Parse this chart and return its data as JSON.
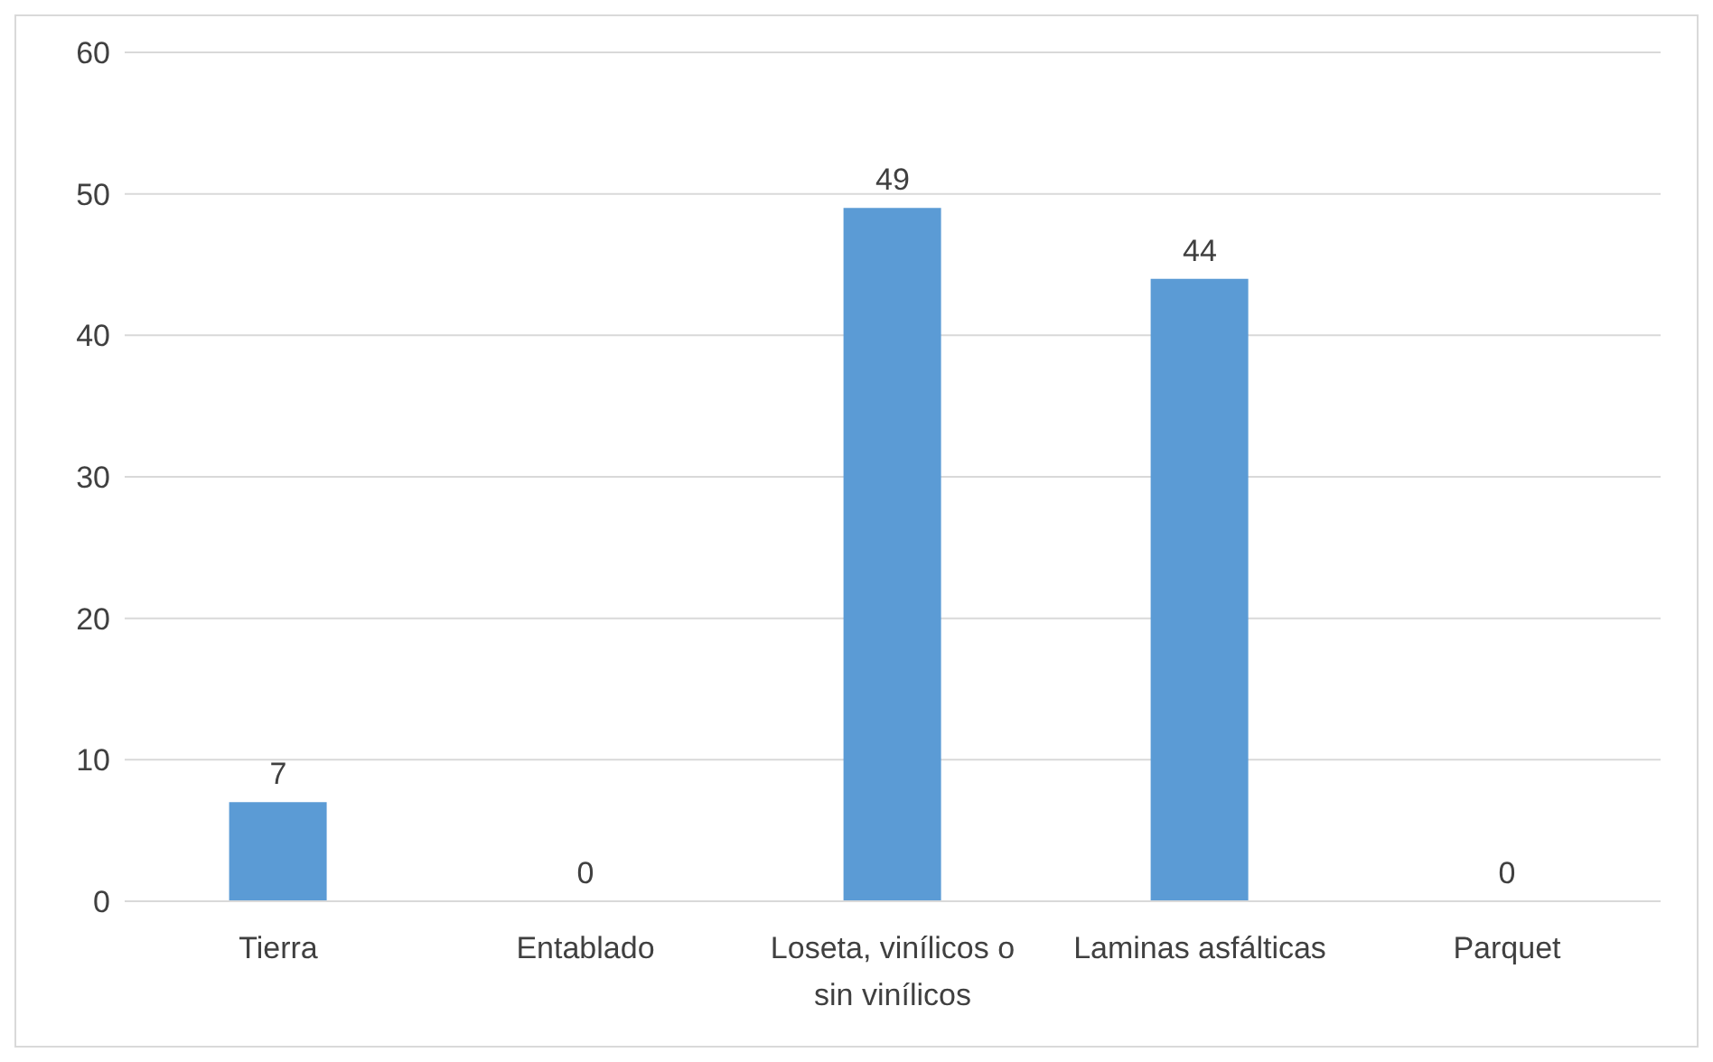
{
  "chart_data": {
    "type": "bar",
    "categories": [
      "Tierra",
      "Entablado",
      "Loseta, vinílicos o sin vinílicos",
      "Laminas asfálticas",
      "Parquet"
    ],
    "values": [
      7,
      0,
      49,
      44,
      0
    ],
    "color": "#5b9bd5",
    "ylim": [
      0,
      60
    ],
    "yticks": [
      0,
      10,
      20,
      30,
      40,
      50,
      60
    ],
    "grid": "y",
    "data_labels": true,
    "legend": false
  }
}
